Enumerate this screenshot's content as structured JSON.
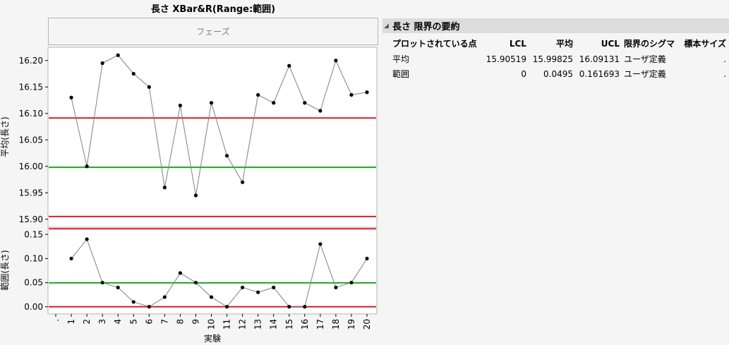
{
  "title": "長さ  XBar&R(Range:範囲)",
  "phase_label": "フェーズ",
  "chart_data": [
    {
      "type": "line",
      "name": "xbar",
      "ylabel": "平均(長さ)",
      "ylim": [
        15.885,
        16.225
      ],
      "yticks": [
        "15.90",
        "15.95",
        "16.00",
        "16.05",
        "16.10",
        "16.15",
        "16.20"
      ],
      "x": [
        1,
        2,
        3,
        4,
        5,
        6,
        7,
        8,
        9,
        10,
        11,
        12,
        13,
        14,
        15,
        16,
        17,
        18,
        19,
        20
      ],
      "values": [
        16.13,
        16.0,
        16.195,
        16.21,
        16.175,
        16.15,
        15.96,
        16.115,
        15.945,
        16.12,
        16.02,
        15.97,
        16.135,
        16.12,
        16.19,
        16.12,
        16.105,
        16.2,
        16.135,
        16.14
      ],
      "lcl": 15.90519,
      "avg": 15.99825,
      "ucl": 16.09131
    },
    {
      "type": "line",
      "name": "range",
      "ylabel": "範囲(長さ)",
      "ylim": [
        -0.015,
        0.165
      ],
      "yticks": [
        "0.00",
        "0.05",
        "0.10",
        "0.15"
      ],
      "x": [
        1,
        2,
        3,
        4,
        5,
        6,
        7,
        8,
        9,
        10,
        11,
        12,
        13,
        14,
        15,
        16,
        17,
        18,
        19,
        20
      ],
      "values": [
        0.1,
        0.14,
        0.05,
        0.04,
        0.01,
        0.0,
        0.02,
        0.07,
        0.05,
        0.02,
        0.0,
        0.04,
        0.03,
        0.04,
        0.0,
        0.0,
        0.13,
        0.04,
        0.05,
        0.1
      ],
      "lcl": 0,
      "avg": 0.0495,
      "ucl": 0.161693
    }
  ],
  "x_axis": {
    "label": "実験",
    "ticks": [
      ".",
      "1",
      "2",
      "3",
      "4",
      "5",
      "6",
      "7",
      "8",
      "9",
      "10",
      "11",
      "12",
      "13",
      "14",
      "15",
      "16",
      "17",
      "18",
      "19",
      "20"
    ]
  },
  "colors": {
    "limit": "#d4202a",
    "center": "#1ea61e",
    "line": "#808080",
    "marker": "#000000"
  },
  "summary": {
    "title": "長さ 限界の要約",
    "headers": [
      "プロットされている点",
      "LCL",
      "平均",
      "UCL",
      "限界のシグマ",
      "標本サイズ"
    ],
    "rows": [
      [
        "平均",
        "15.90519",
        "15.99825",
        "16.09131",
        "ユーザ定義",
        "."
      ],
      [
        "範囲",
        "0",
        "0.0495",
        "0.161693",
        "ユーザ定義",
        "."
      ]
    ]
  }
}
